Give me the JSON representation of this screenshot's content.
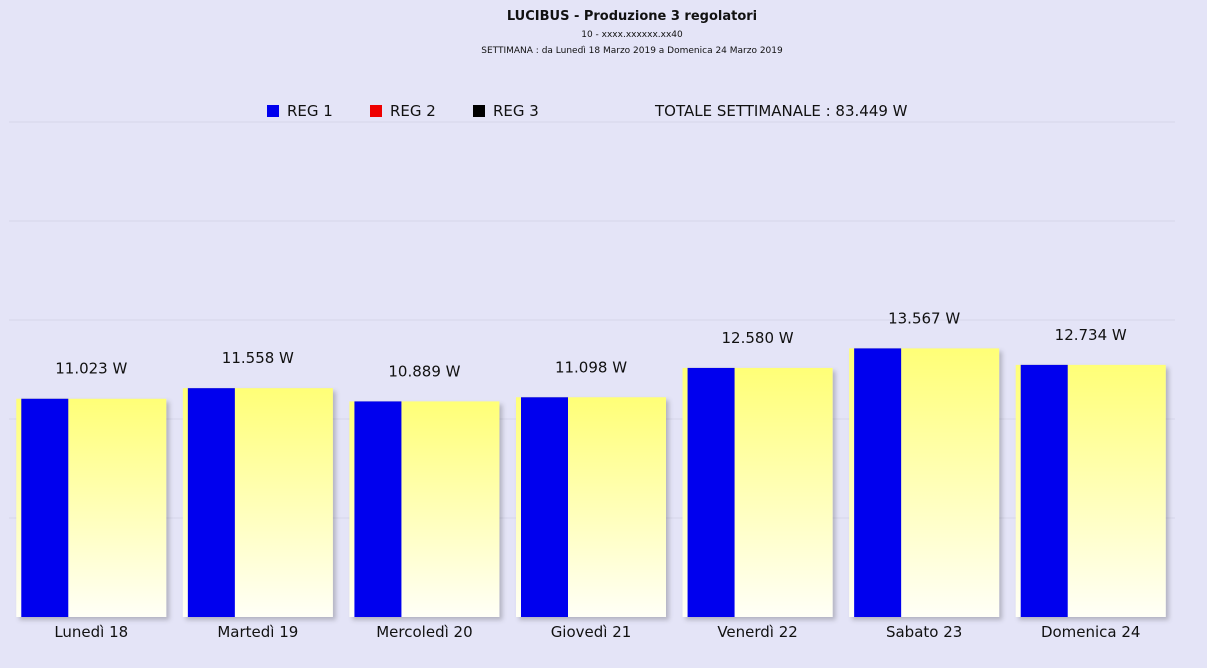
{
  "header": {
    "title": "LUCIBUS - Produzione 3 regolatori",
    "subtitle": "10 - xxxx.xxxxxx.xx40",
    "period": "SETTIMANA : da Lunedì 18 Marzo 2019 a Domenica 24 Marzo 2019"
  },
  "legend": {
    "items": [
      {
        "label": "REG 1",
        "color": "#0000ee"
      },
      {
        "label": "REG 2",
        "color": "#ee0000"
      },
      {
        "label": "REG 3",
        "color": "#000000"
      }
    ],
    "total": "TOTALE SETTIMANALE :  83.449 W"
  },
  "chart_data": {
    "type": "bar",
    "title": "LUCIBUS - Produzione 3 regolatori",
    "categories": [
      "Lunedì 18",
      "Martedì 19",
      "Mercoledì 20",
      "Giovedì 21",
      "Venerdì 22",
      "Sabato 23",
      "Domenica 24"
    ],
    "values": [
      11023,
      11558,
      10889,
      11098,
      12580,
      13567,
      12734
    ],
    "value_labels": [
      "11.023 W",
      "11.558 W",
      "10.889 W",
      "11.098 W",
      "12.580 W",
      "13.567 W",
      "12.734 W"
    ],
    "series": [
      {
        "name": "REG 1",
        "color": "#0000ee",
        "values": [
          11023,
          11558,
          10889,
          11098,
          12580,
          13567,
          12734
        ]
      },
      {
        "name": "REG 2",
        "color": "#ee0000",
        "values": [
          0,
          0,
          0,
          0,
          0,
          0,
          0
        ]
      },
      {
        "name": "REG 3",
        "color": "#000000",
        "values": [
          0,
          0,
          0,
          0,
          0,
          0,
          0
        ]
      }
    ],
    "ylim": [
      0,
      25000
    ],
    "grid": true,
    "legend_position": "top",
    "background_color": "#e4e4f7",
    "bar_fill_gradient": [
      "#ffff77",
      "#fffff7"
    ]
  }
}
